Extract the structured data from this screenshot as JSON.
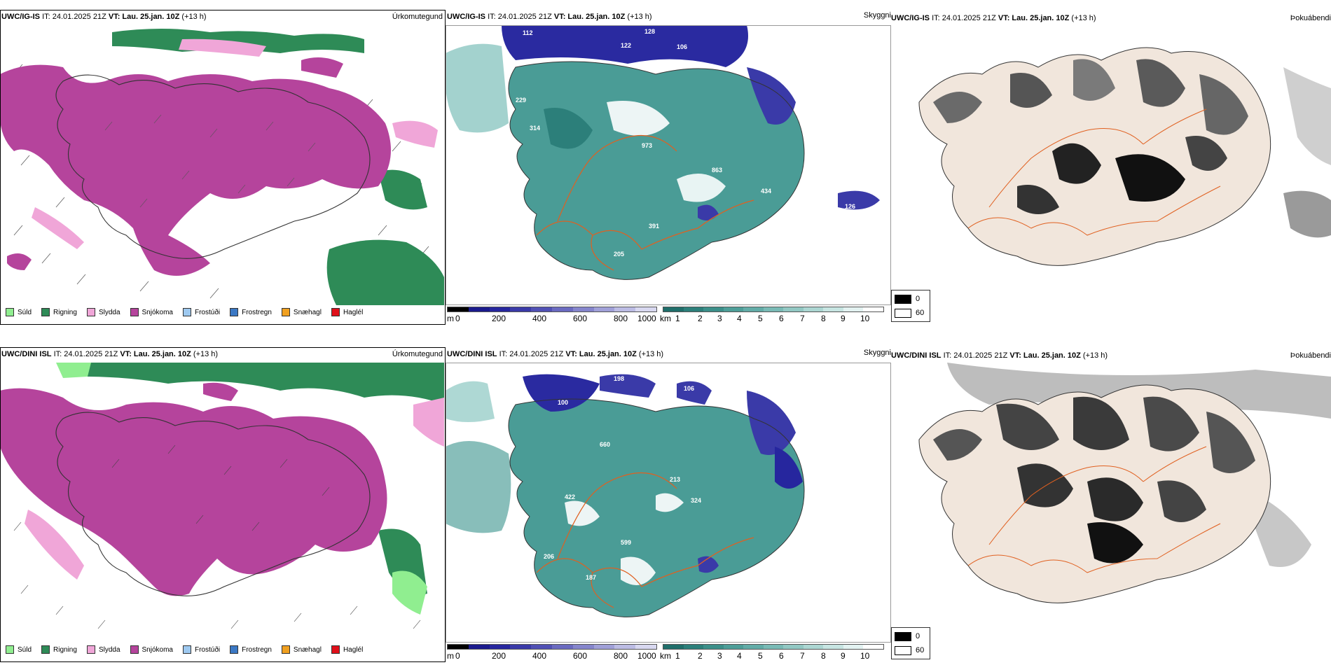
{
  "rows": [
    {
      "model": "UWC/IG-IS",
      "it": "IT: 24.01.2025 21Z",
      "vt_label": "VT:",
      "vt_value": "Lau. 25.jan. 10Z",
      "lead": "(+13 h)"
    },
    {
      "model": "UWC/DINI ISL",
      "it": "IT: 24.01.2025 21Z",
      "vt_label": "VT:",
      "vt_value": "Lau. 25.jan. 10Z",
      "lead": "(+13 h)"
    }
  ],
  "panel_titles": {
    "precip": "Úrkomutegund",
    "cloud": "Skyggni",
    "fog": "Þokuábendi"
  },
  "precip_legend": [
    {
      "label": "Súld",
      "color": "#90ee90"
    },
    {
      "label": "Rigning",
      "color": "#2e8b57"
    },
    {
      "label": "Slydda",
      "color": "#f0a6d8"
    },
    {
      "label": "Snjókoma",
      "color": "#b5449c"
    },
    {
      "label": "Frostúði",
      "color": "#9ec9f0"
    },
    {
      "label": "Frostregn",
      "color": "#3b78c4"
    },
    {
      "label": "Snæhagl",
      "color": "#f0a020"
    },
    {
      "label": "Haglél",
      "color": "#e0101a"
    }
  ],
  "ceiling_scale": {
    "unit": "m",
    "ticks": [
      "0",
      "200",
      "400",
      "600",
      "800",
      "1000"
    ],
    "colors": [
      "#000000",
      "#1a1a8c",
      "#26269e",
      "#3a3aa8",
      "#5050b4",
      "#6a6ac0",
      "#8585cc",
      "#a0a0d8",
      "#bcbce4",
      "#d8d8f0"
    ]
  },
  "visibility_scale": {
    "unit": "km",
    "ticks": [
      "1",
      "2",
      "3",
      "4",
      "5",
      "6",
      "7",
      "8",
      "9",
      "10"
    ],
    "colors": [
      "#1f6e6a",
      "#2c7f7a",
      "#3b8f89",
      "#4d9e98",
      "#62aca7",
      "#79bab5",
      "#92c8c3",
      "#acd6d2",
      "#c7e5e2",
      "#e3f2f1",
      "#ffffff"
    ]
  },
  "fog_key": {
    "dark": "0",
    "light": "60"
  },
  "colors": {
    "snow": "#b5449c",
    "rain": "#2e8b57",
    "sleet": "#f0a6d8",
    "drizzle": "#90ee90",
    "ceiling_low": "#2a2aa0",
    "vis_teal": "#4a9c96",
    "roads": "#e06020"
  }
}
